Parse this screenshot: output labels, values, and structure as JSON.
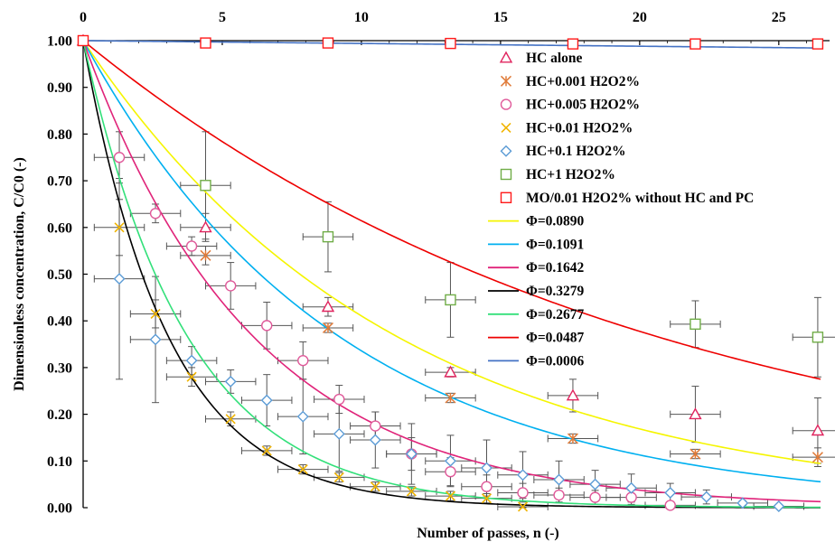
{
  "chart_data": {
    "type": "scatter",
    "xlabel": "Number of passes, n (-)",
    "ylabel": "Dimensionless concentration, C/C0 (-)",
    "xlim": [
      0,
      26.5
    ],
    "ylim": [
      0,
      1.0
    ],
    "x_ticks": [
      0,
      5,
      10,
      15,
      20,
      25
    ],
    "y_ticks": [
      0.0,
      0.1,
      0.2,
      0.3,
      0.4,
      0.5,
      0.6,
      0.7,
      0.8,
      0.9,
      1.0
    ],
    "x_tick_labels": [
      "0",
      "5",
      "10",
      "15",
      "20",
      "25"
    ],
    "y_tick_labels": [
      "0.00",
      "0.10",
      "0.20",
      "0.30",
      "0.40",
      "0.50",
      "0.60",
      "0.70",
      "0.80",
      "0.90",
      "1.00"
    ],
    "x_axis_position": "top",
    "grid": false,
    "legend_position": "top-right",
    "series": [
      {
        "name": "HC alone",
        "marker": "triangle",
        "color": "#e0245e",
        "x": [
          0,
          4.4,
          8.8,
          13.2,
          17.6,
          22.0,
          26.4
        ],
        "y": [
          1.0,
          0.6,
          0.43,
          0.29,
          0.24,
          0.2,
          0.165
        ],
        "xerr": [
          0,
          0.9,
          0.9,
          0.9,
          0.9,
          0.9,
          0.9
        ],
        "yerr": [
          0,
          0.03,
          0.02,
          0.01,
          0.035,
          0.06,
          0.07
        ]
      },
      {
        "name": "HC+0.001 H2O2%",
        "marker": "asterisk",
        "color": "#e07b39",
        "x": [
          4.4,
          8.8,
          13.2,
          17.6,
          22.0,
          26.4
        ],
        "y": [
          0.54,
          0.385,
          0.235,
          0.148,
          0.115,
          0.108
        ],
        "xerr": [
          0.9,
          0.9,
          0.9,
          0.9,
          0.9,
          0.9
        ],
        "yerr": [
          0.02,
          0.01,
          0.01,
          0.01,
          0.01,
          0.02
        ]
      },
      {
        "name": "HC+0.005 H2O2%",
        "marker": "circle",
        "color": "#e05a9a",
        "x": [
          1.3,
          2.6,
          3.9,
          5.3,
          6.6,
          7.9,
          9.2,
          10.5,
          11.8,
          13.2,
          14.5,
          15.8,
          17.1,
          18.4,
          19.7,
          21.1
        ],
        "y": [
          0.75,
          0.63,
          0.56,
          0.475,
          0.39,
          0.315,
          0.232,
          0.175,
          0.115,
          0.077,
          0.045,
          0.032,
          0.027,
          0.022,
          0.022,
          0.005
        ],
        "xerr": [
          0.9,
          0.9,
          0.9,
          0.9,
          0.9,
          0.9,
          0.9,
          0.9,
          0.9,
          0.9,
          0.9,
          0.9,
          0.9,
          0.9,
          0.9,
          0.9
        ],
        "yerr": [
          0.055,
          0.02,
          0.02,
          0.05,
          0.05,
          0.04,
          0.03,
          0.03,
          0.035,
          0.03,
          0.025,
          0.02,
          0.015,
          0.015,
          0.015,
          0.005
        ]
      },
      {
        "name": "HC+0.01 H2O2%",
        "marker": "cross",
        "color": "#f0b400",
        "x": [
          1.3,
          2.6,
          3.9,
          5.3,
          6.6,
          7.9,
          9.2,
          10.5,
          11.8,
          13.2,
          14.5,
          15.8
        ],
        "y": [
          0.6,
          0.415,
          0.28,
          0.19,
          0.122,
          0.082,
          0.065,
          0.045,
          0.035,
          0.025,
          0.02,
          0.002
        ],
        "xerr": [
          0.9,
          0.9,
          0.9,
          0.9,
          0.9,
          0.9,
          0.9,
          0.9,
          0.9,
          0.9,
          0.9,
          0.9
        ],
        "yerr": [
          0.06,
          0.03,
          0.02,
          0.015,
          0.01,
          0.01,
          0.01,
          0.01,
          0.01,
          0.01,
          0.01,
          0.005
        ]
      },
      {
        "name": "HC+0.1 H2O2%",
        "marker": "diamond",
        "color": "#5b9bd5",
        "x": [
          1.3,
          2.6,
          3.9,
          5.3,
          6.6,
          7.9,
          9.2,
          10.5,
          11.8,
          13.2,
          14.5,
          15.8,
          17.1,
          18.4,
          19.7,
          21.1,
          22.4,
          23.7,
          25.0
        ],
        "y": [
          0.49,
          0.36,
          0.315,
          0.27,
          0.23,
          0.195,
          0.158,
          0.145,
          0.115,
          0.1,
          0.085,
          0.07,
          0.06,
          0.05,
          0.042,
          0.032,
          0.023,
          0.01,
          0.003
        ],
        "xerr": [
          0.9,
          0.9,
          0.9,
          0.9,
          0.9,
          0.9,
          0.9,
          0.9,
          0.9,
          0.9,
          0.9,
          0.9,
          0.9,
          0.9,
          0.9,
          0.9,
          0.9,
          0.9,
          0.9
        ],
        "yerr": [
          0.215,
          0.135,
          0.03,
          0.025,
          0.055,
          0.08,
          0.08,
          0.06,
          0.065,
          0.055,
          0.06,
          0.05,
          0.04,
          0.03,
          0.03,
          0.02,
          0.015,
          0.005,
          0.003
        ]
      },
      {
        "name": "HC+1 H2O2%",
        "marker": "square",
        "color": "#70ad47",
        "x": [
          4.4,
          8.8,
          13.2,
          22.0,
          26.4
        ],
        "y": [
          0.69,
          0.58,
          0.445,
          0.393,
          0.365
        ],
        "xerr": [
          0.9,
          0.9,
          0.9,
          0.9,
          0.9
        ],
        "yerr": [
          0.115,
          0.075,
          0.08,
          0.05,
          0.085
        ]
      },
      {
        "name": "MO/0.01 H2O2% without HC and PC",
        "marker": "square",
        "color": "#ff1a1a",
        "x": [
          0,
          4.4,
          8.8,
          13.2,
          17.6,
          22.0,
          26.4
        ],
        "y": [
          1.0,
          0.995,
          0.995,
          0.994,
          0.993,
          0.993,
          0.993
        ],
        "xerr": [
          0,
          0,
          0,
          0,
          0,
          0,
          0
        ],
        "yerr": [
          0,
          0,
          0,
          0,
          0,
          0,
          0
        ]
      }
    ],
    "fits": [
      {
        "name": "Φ=0.0890",
        "phi": 0.089,
        "color": "#f5f500"
      },
      {
        "name": "Φ=0.1091",
        "phi": 0.1091,
        "color": "#00b0f0"
      },
      {
        "name": "Φ=0.1642",
        "phi": 0.1642,
        "color": "#e0247a"
      },
      {
        "name": "Φ=0.3279",
        "phi": 0.3279,
        "color": "#000000"
      },
      {
        "name": "Φ=0.2677",
        "phi": 0.2677,
        "color": "#33e07a"
      },
      {
        "name": "Φ=0.0487",
        "phi": 0.0487,
        "color": "#ee0000"
      },
      {
        "name": "Φ=0.0006",
        "phi": 0.0006,
        "color": "#4472c4"
      }
    ]
  }
}
